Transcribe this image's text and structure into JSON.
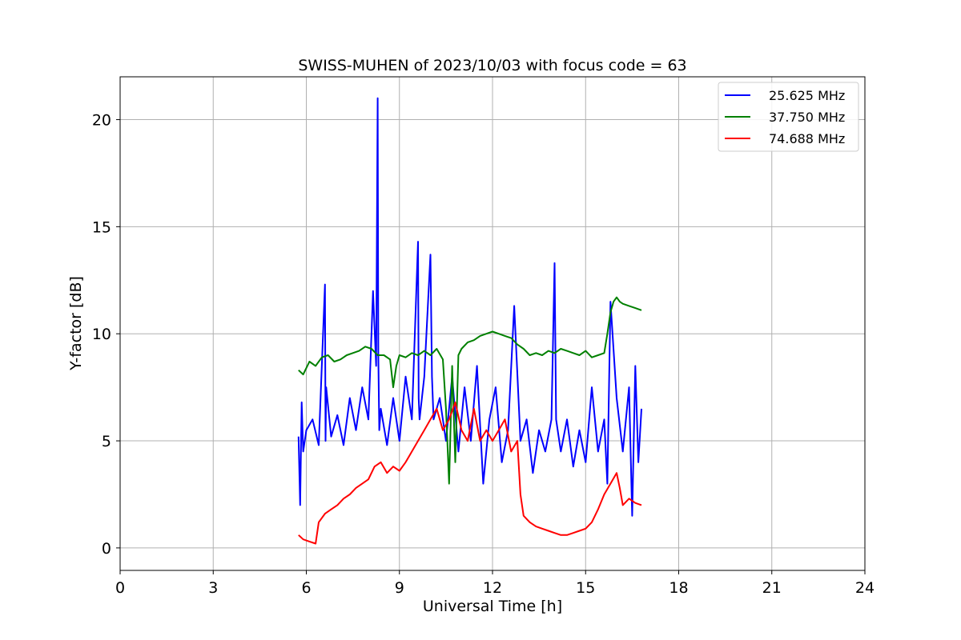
{
  "chart_data": {
    "type": "line",
    "title": "SWISS-MUHEN of 2023/10/03 with focus code = 63",
    "xlabel": "Universal Time [h]",
    "ylabel": "Y-factor [dB]",
    "xlim": [
      0,
      24
    ],
    "ylim": [
      -1.05,
      22
    ],
    "xticks": [
      0,
      3,
      6,
      9,
      12,
      15,
      18,
      21,
      24
    ],
    "yticks": [
      0,
      5,
      10,
      15,
      20
    ],
    "grid": true,
    "legend_position": "top-right",
    "series": [
      {
        "name": "25.625 MHz",
        "color": "#0000ff",
        "x": [
          5.75,
          5.8,
          5.85,
          5.9,
          6.0,
          6.2,
          6.4,
          6.6,
          6.62,
          6.64,
          6.8,
          7.0,
          7.2,
          7.4,
          7.6,
          7.8,
          8.0,
          8.15,
          8.25,
          8.3,
          8.32,
          8.35,
          8.4,
          8.6,
          8.8,
          9.0,
          9.2,
          9.4,
          9.6,
          9.62,
          9.65,
          9.8,
          10.0,
          10.05,
          10.1,
          10.3,
          10.5,
          10.7,
          10.9,
          11.1,
          11.3,
          11.5,
          11.7,
          11.9,
          12.1,
          12.3,
          12.5,
          12.7,
          12.9,
          13.1,
          13.3,
          13.5,
          13.7,
          13.9,
          14.0,
          14.05,
          14.2,
          14.4,
          14.6,
          14.8,
          15.0,
          15.2,
          15.4,
          15.6,
          15.7,
          15.8,
          16.0,
          16.2,
          16.4,
          16.5,
          16.6,
          16.7,
          16.8
        ],
        "y": [
          5.2,
          2.0,
          6.8,
          4.5,
          5.5,
          6.0,
          4.8,
          12.3,
          5.0,
          7.5,
          5.2,
          6.2,
          4.8,
          7.0,
          5.5,
          7.5,
          6.0,
          12.0,
          8.5,
          21.0,
          9.0,
          5.5,
          6.5,
          4.8,
          7.0,
          5.0,
          8.0,
          6.0,
          14.3,
          7.0,
          6.0,
          8.0,
          13.7,
          8.0,
          6.0,
          7.0,
          5.0,
          8.0,
          4.5,
          7.5,
          5.0,
          8.5,
          3.0,
          6.0,
          7.5,
          4.0,
          5.5,
          11.3,
          5.0,
          6.0,
          3.5,
          5.5,
          4.5,
          6.0,
          13.3,
          6.0,
          4.5,
          6.0,
          3.8,
          5.5,
          4.0,
          7.5,
          4.5,
          6.0,
          3.0,
          11.5,
          7.0,
          4.5,
          7.5,
          1.5,
          8.5,
          4.0,
          6.5
        ]
      },
      {
        "name": "37.750 MHz",
        "color": "#008000",
        "x": [
          5.75,
          5.9,
          6.1,
          6.3,
          6.5,
          6.7,
          6.9,
          7.1,
          7.3,
          7.5,
          7.7,
          7.9,
          8.1,
          8.3,
          8.5,
          8.7,
          8.8,
          8.9,
          9.0,
          9.2,
          9.4,
          9.6,
          9.8,
          10.0,
          10.2,
          10.4,
          10.5,
          10.6,
          10.7,
          10.8,
          10.9,
          11.0,
          11.2,
          11.4,
          11.6,
          11.8,
          12.0,
          12.2,
          12.4,
          12.6,
          12.8,
          13.0,
          13.2,
          13.4,
          13.6,
          13.8,
          14.0,
          14.2,
          14.4,
          14.6,
          14.8,
          15.0,
          15.2,
          15.4,
          15.6,
          15.7,
          15.8,
          15.9,
          16.0,
          16.1,
          16.2,
          16.4,
          16.6,
          16.8
        ],
        "y": [
          8.3,
          8.1,
          8.7,
          8.5,
          8.9,
          9.0,
          8.7,
          8.8,
          9.0,
          9.1,
          9.2,
          9.4,
          9.3,
          9.0,
          9.0,
          8.8,
          7.5,
          8.5,
          9.0,
          8.9,
          9.1,
          9.0,
          9.2,
          9.0,
          9.3,
          8.8,
          6.5,
          3.0,
          8.5,
          4.0,
          9.0,
          9.3,
          9.6,
          9.7,
          9.9,
          10.0,
          10.1,
          10.0,
          9.9,
          9.8,
          9.5,
          9.3,
          9.0,
          9.1,
          9.0,
          9.2,
          9.1,
          9.3,
          9.2,
          9.1,
          9.0,
          9.2,
          8.9,
          9.0,
          9.1,
          10.0,
          11.0,
          11.5,
          11.7,
          11.5,
          11.4,
          11.3,
          11.2,
          11.1
        ]
      },
      {
        "name": "74.688 MHz",
        "color": "#ff0000",
        "x": [
          5.75,
          5.9,
          6.1,
          6.3,
          6.4,
          6.6,
          6.8,
          7.0,
          7.2,
          7.4,
          7.6,
          7.8,
          8.0,
          8.2,
          8.4,
          8.6,
          8.8,
          9.0,
          9.2,
          9.4,
          9.6,
          9.8,
          10.0,
          10.2,
          10.4,
          10.6,
          10.8,
          11.0,
          11.2,
          11.4,
          11.6,
          11.8,
          12.0,
          12.2,
          12.4,
          12.6,
          12.8,
          12.9,
          13.0,
          13.2,
          13.4,
          13.6,
          13.8,
          14.0,
          14.2,
          14.4,
          14.6,
          14.8,
          15.0,
          15.2,
          15.4,
          15.6,
          15.8,
          16.0,
          16.1,
          16.2,
          16.4,
          16.6,
          16.8
        ],
        "y": [
          0.6,
          0.4,
          0.3,
          0.2,
          1.2,
          1.6,
          1.8,
          2.0,
          2.3,
          2.5,
          2.8,
          3.0,
          3.2,
          3.8,
          4.0,
          3.5,
          3.8,
          3.6,
          4.0,
          4.5,
          5.0,
          5.5,
          6.0,
          6.5,
          5.5,
          6.0,
          6.8,
          5.5,
          5.0,
          6.5,
          5.0,
          5.5,
          5.0,
          5.5,
          6.0,
          4.5,
          5.0,
          2.5,
          1.5,
          1.2,
          1.0,
          0.9,
          0.8,
          0.7,
          0.6,
          0.6,
          0.7,
          0.8,
          0.9,
          1.2,
          1.8,
          2.5,
          3.0,
          3.5,
          2.8,
          2.0,
          2.3,
          2.1,
          2.0
        ]
      }
    ]
  }
}
